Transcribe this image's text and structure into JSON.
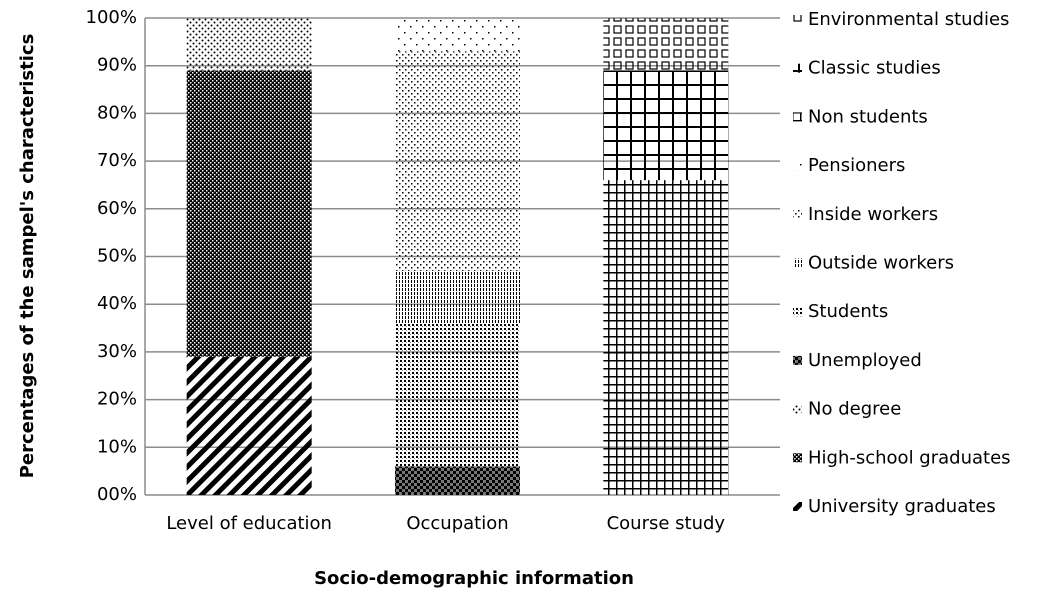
{
  "chart_data": {
    "type": "stacked-bar",
    "y_label": "Percentages of the sampel's characteristics",
    "x_label": "Socio-demographic information",
    "categories": [
      "Level of education",
      "Occupation",
      "Course study"
    ],
    "series": [
      {
        "name": "University graduates",
        "color": "#000000",
        "values": [
          29,
          0,
          0
        ]
      },
      {
        "name": "High-school graduates",
        "color": "#000000",
        "values": [
          60,
          0,
          0
        ]
      },
      {
        "name": "No degree",
        "color": "#000000",
        "values": [
          11,
          0,
          0
        ]
      },
      {
        "name": "Unemployed",
        "color": "#000000",
        "values": [
          0,
          6,
          0
        ]
      },
      {
        "name": "Students",
        "color": "#000000",
        "values": [
          0,
          30,
          0
        ]
      },
      {
        "name": "Outside workers",
        "color": "#000000",
        "values": [
          0,
          11,
          0
        ]
      },
      {
        "name": "Inside workers",
        "color": "#000000",
        "values": [
          0,
          46,
          0
        ]
      },
      {
        "name": "Pensioners",
        "color": "#000000",
        "values": [
          0,
          7,
          0
        ]
      },
      {
        "name": "Non students",
        "color": "#000000",
        "values": [
          0,
          0,
          66
        ]
      },
      {
        "name": "Classic studies",
        "color": "#000000",
        "values": [
          0,
          0,
          23
        ]
      },
      {
        "name": "Environmental studies",
        "color": "#000000",
        "values": [
          0,
          0,
          11
        ]
      }
    ],
    "ylim": [
      0,
      100
    ],
    "yticks": [
      {
        "value": 0,
        "label": "00%"
      },
      {
        "value": 10,
        "label": "10%"
      },
      {
        "value": 20,
        "label": "20%"
      },
      {
        "value": 30,
        "label": "30%"
      },
      {
        "value": 40,
        "label": "40%"
      },
      {
        "value": 50,
        "label": "50%"
      },
      {
        "value": 60,
        "label": "60%"
      },
      {
        "value": 70,
        "label": "70%"
      },
      {
        "value": 80,
        "label": "80%"
      },
      {
        "value": 90,
        "label": "90%"
      },
      {
        "value": 100,
        "label": "100%"
      }
    ],
    "grid": true
  }
}
